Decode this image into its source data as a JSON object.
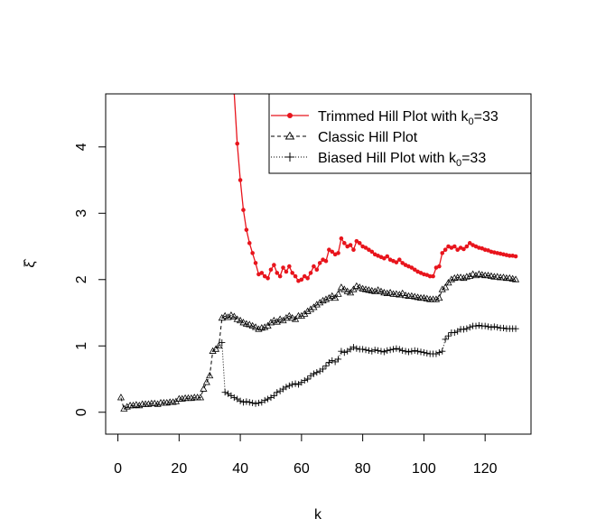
{
  "chart_data": {
    "type": "line",
    "xlabel": "k",
    "ylabel": "ξ̂",
    "xlim": [
      -4,
      135
    ],
    "ylim": [
      -0.33,
      4.8
    ],
    "x_ticks": [
      "0",
      "20",
      "40",
      "60",
      "80",
      "100",
      "120"
    ],
    "x_tick_values": [
      0,
      20,
      40,
      60,
      80,
      100,
      120
    ],
    "y_ticks": [
      "0",
      "1",
      "2",
      "3",
      "4"
    ],
    "y_tick_values": [
      0,
      1,
      2,
      3,
      4
    ],
    "legend_position": "top-right",
    "colors": {
      "trimmed": "#e8141c",
      "classic": "#000000",
      "biased": "#000000"
    },
    "series": [
      {
        "name": "Trimmed Hill Plot with k0=33",
        "legend_main": "Trimmed Hill Plot with k",
        "legend_sub": "0",
        "legend_tail": "=33",
        "style": "solid-dot",
        "x": [
          38,
          39,
          40,
          41,
          42,
          43,
          44,
          45,
          46,
          47,
          48,
          49,
          50,
          51,
          52,
          53,
          54,
          55,
          56,
          57,
          58,
          59,
          60,
          61,
          62,
          63,
          64,
          65,
          66,
          67,
          68,
          69,
          70,
          71,
          72,
          73,
          74,
          75,
          76,
          77,
          78,
          79,
          80,
          81,
          82,
          83,
          84,
          85,
          86,
          87,
          88,
          89,
          90,
          91,
          92,
          93,
          94,
          95,
          96,
          97,
          98,
          99,
          100,
          101,
          102,
          103,
          104,
          105,
          106,
          107,
          108,
          109,
          110,
          111,
          112,
          113,
          114,
          115,
          116,
          117,
          118,
          119,
          120,
          121,
          122,
          123,
          124,
          125,
          126,
          127,
          128,
          129,
          130
        ],
        "y": [
          4.82,
          4.05,
          3.5,
          3.05,
          2.75,
          2.55,
          2.4,
          2.25,
          2.08,
          2.1,
          2.05,
          2.02,
          2.15,
          2.22,
          2.1,
          2.05,
          2.18,
          2.12,
          2.2,
          2.1,
          2.05,
          1.98,
          2.0,
          2.05,
          2.02,
          2.1,
          2.2,
          2.15,
          2.25,
          2.3,
          2.28,
          2.45,
          2.42,
          2.38,
          2.4,
          2.62,
          2.55,
          2.5,
          2.52,
          2.45,
          2.58,
          2.55,
          2.5,
          2.48,
          2.45,
          2.42,
          2.38,
          2.36,
          2.34,
          2.32,
          2.35,
          2.3,
          2.28,
          2.26,
          2.3,
          2.25,
          2.22,
          2.2,
          2.18,
          2.15,
          2.12,
          2.1,
          2.08,
          2.07,
          2.05,
          2.05,
          2.18,
          2.2,
          2.4,
          2.45,
          2.5,
          2.48,
          2.5,
          2.45,
          2.48,
          2.46,
          2.5,
          2.55,
          2.52,
          2.5,
          2.48,
          2.47,
          2.45,
          2.44,
          2.42,
          2.41,
          2.4,
          2.39,
          2.38,
          2.37,
          2.36,
          2.36,
          2.35
        ]
      },
      {
        "name": "Classic Hill Plot",
        "style": "dashed-triangle",
        "x": [
          1,
          2,
          3,
          4,
          5,
          6,
          7,
          8,
          9,
          10,
          11,
          12,
          13,
          14,
          15,
          16,
          17,
          18,
          19,
          20,
          21,
          22,
          23,
          24,
          25,
          26,
          27,
          28,
          29,
          30,
          31,
          32,
          33,
          34,
          35,
          36,
          37,
          38,
          39,
          40,
          41,
          42,
          43,
          44,
          45,
          46,
          47,
          48,
          49,
          50,
          51,
          52,
          53,
          54,
          55,
          56,
          57,
          58,
          59,
          60,
          61,
          62,
          63,
          64,
          65,
          66,
          67,
          68,
          69,
          70,
          71,
          72,
          73,
          74,
          75,
          76,
          77,
          78,
          79,
          80,
          81,
          82,
          83,
          84,
          85,
          86,
          87,
          88,
          89,
          90,
          91,
          92,
          93,
          94,
          95,
          96,
          97,
          98,
          99,
          100,
          101,
          102,
          103,
          104,
          105,
          106,
          107,
          108,
          109,
          110,
          111,
          112,
          113,
          114,
          115,
          116,
          117,
          118,
          119,
          120,
          121,
          122,
          123,
          124,
          125,
          126,
          127,
          128,
          129,
          130
        ],
        "y": [
          0.22,
          0.05,
          0.08,
          0.1,
          0.1,
          0.11,
          0.1,
          0.12,
          0.12,
          0.12,
          0.13,
          0.13,
          0.12,
          0.14,
          0.14,
          0.14,
          0.15,
          0.15,
          0.16,
          0.2,
          0.2,
          0.21,
          0.21,
          0.21,
          0.22,
          0.22,
          0.22,
          0.35,
          0.45,
          0.55,
          0.92,
          0.95,
          1.0,
          1.42,
          1.45,
          1.43,
          1.46,
          1.44,
          1.4,
          1.38,
          1.35,
          1.33,
          1.32,
          1.3,
          1.28,
          1.25,
          1.27,
          1.28,
          1.3,
          1.35,
          1.38,
          1.36,
          1.4,
          1.38,
          1.42,
          1.45,
          1.42,
          1.4,
          1.45,
          1.45,
          1.48,
          1.52,
          1.55,
          1.58,
          1.62,
          1.65,
          1.68,
          1.7,
          1.72,
          1.75,
          1.72,
          1.78,
          1.88,
          1.85,
          1.82,
          1.8,
          1.85,
          1.9,
          1.88,
          1.86,
          1.85,
          1.84,
          1.83,
          1.82,
          1.84,
          1.82,
          1.8,
          1.79,
          1.8,
          1.78,
          1.78,
          1.77,
          1.79,
          1.76,
          1.75,
          1.75,
          1.74,
          1.73,
          1.72,
          1.72,
          1.71,
          1.7,
          1.7,
          1.7,
          1.72,
          1.85,
          1.88,
          1.95,
          2.0,
          2.02,
          2.03,
          2.03,
          2.02,
          2.04,
          2.05,
          2.08,
          2.06,
          2.08,
          2.07,
          2.06,
          2.06,
          2.05,
          2.04,
          2.04,
          2.03,
          2.03,
          2.02,
          2.02,
          2.01,
          2.0
        ]
      },
      {
        "name": "Biased Hill Plot with k0=33",
        "legend_main": "Biased Hill Plot with k",
        "legend_sub": "0",
        "legend_tail": "=33",
        "style": "dotted-plus",
        "x": [
          34,
          35,
          36,
          37,
          38,
          39,
          40,
          41,
          42,
          43,
          44,
          45,
          46,
          47,
          48,
          49,
          50,
          51,
          52,
          53,
          54,
          55,
          56,
          57,
          58,
          59,
          60,
          61,
          62,
          63,
          64,
          65,
          66,
          67,
          68,
          69,
          70,
          71,
          72,
          73,
          74,
          75,
          76,
          77,
          78,
          79,
          80,
          81,
          82,
          83,
          84,
          85,
          86,
          87,
          88,
          89,
          90,
          91,
          92,
          93,
          94,
          95,
          96,
          97,
          98,
          99,
          100,
          101,
          102,
          103,
          104,
          105,
          106,
          107,
          108,
          109,
          110,
          111,
          112,
          113,
          114,
          115,
          116,
          117,
          118,
          119,
          120,
          121,
          122,
          123,
          124,
          125,
          126,
          127,
          128,
          129,
          130
        ],
        "y": [
          1.05,
          0.3,
          0.28,
          0.25,
          0.22,
          0.2,
          0.17,
          0.15,
          0.16,
          0.15,
          0.14,
          0.13,
          0.14,
          0.15,
          0.18,
          0.2,
          0.22,
          0.25,
          0.3,
          0.32,
          0.35,
          0.38,
          0.4,
          0.42,
          0.43,
          0.42,
          0.45,
          0.48,
          0.5,
          0.55,
          0.58,
          0.6,
          0.62,
          0.65,
          0.7,
          0.75,
          0.78,
          0.76,
          0.8,
          0.92,
          0.9,
          0.92,
          0.95,
          0.98,
          0.96,
          0.95,
          0.95,
          0.94,
          0.93,
          0.92,
          0.94,
          0.93,
          0.92,
          0.91,
          0.93,
          0.94,
          0.95,
          0.96,
          0.95,
          0.93,
          0.92,
          0.91,
          0.92,
          0.93,
          0.92,
          0.91,
          0.9,
          0.89,
          0.88,
          0.88,
          0.88,
          0.9,
          0.92,
          1.1,
          1.15,
          1.2,
          1.2,
          1.22,
          1.25,
          1.25,
          1.26,
          1.28,
          1.3,
          1.3,
          1.31,
          1.3,
          1.3,
          1.29,
          1.28,
          1.29,
          1.28,
          1.27,
          1.27,
          1.26,
          1.26,
          1.26,
          1.26
        ]
      }
    ]
  }
}
